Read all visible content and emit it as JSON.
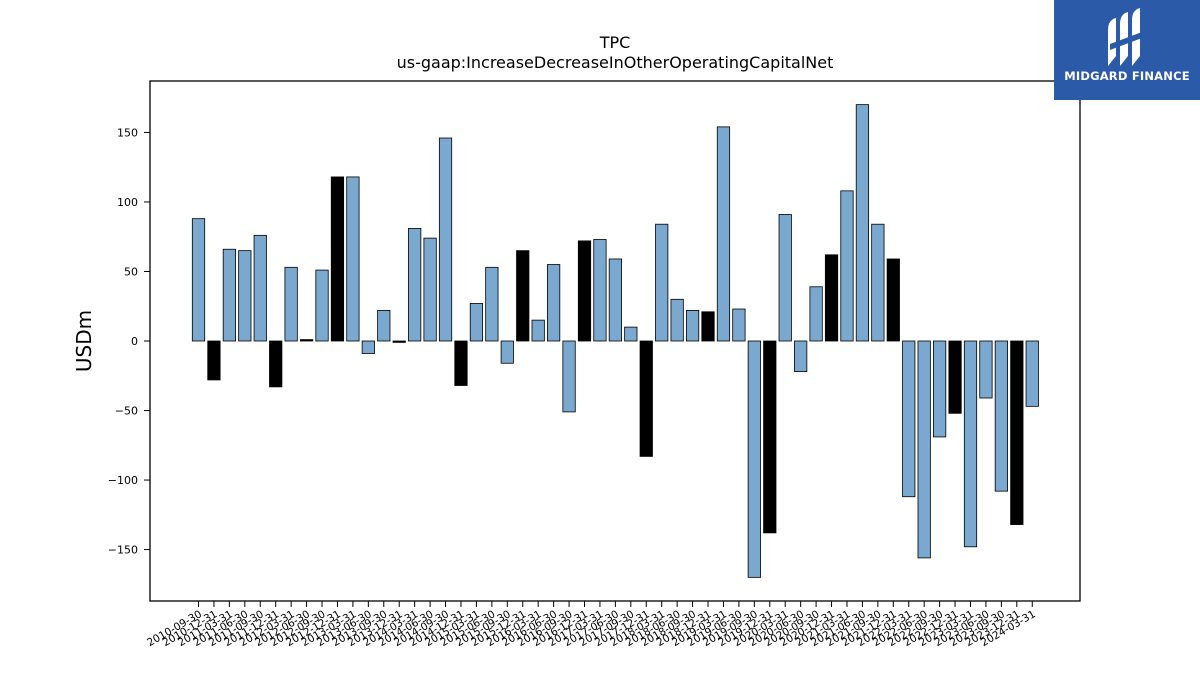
{
  "chart_data": {
    "type": "bar",
    "title": "TPC",
    "subtitle": "us-gaap:IncreaseDecreaseInOtherOperatingCapitalNet",
    "ylabel": "USDm",
    "xlabel": "",
    "ylim": [
      -187,
      187
    ],
    "yticks": [
      -150,
      -100,
      -50,
      0,
      50,
      100,
      150
    ],
    "grid": false,
    "colors": {
      "quarter": "#7aa8cf",
      "annual": "#000000",
      "edge": "#000000"
    },
    "tick_labels": [
      "2010-09-30",
      "2010-12-31",
      "2011-03-31",
      "2011-06-30",
      "2011-09-30",
      "2011-12-31",
      "2012-03-31",
      "2012-06-30",
      "2012-09-30",
      "2012-12-31",
      "2013-03-31",
      "2013-06-30",
      "2013-09-30",
      "2013-12-31",
      "2014-03-31",
      "2014-06-30",
      "2014-09-30",
      "2014-12-31",
      "2015-03-31",
      "2015-06-30",
      "2015-09-30",
      "2015-12-31",
      "2016-03-31",
      "2016-06-30",
      "2016-09-30",
      "2016-12-31",
      "2017-03-31",
      "2017-06-30",
      "2017-09-30",
      "2017-12-31",
      "2018-03-31",
      "2018-06-30",
      "2018-09-30",
      "2018-12-31",
      "2019-03-31",
      "2019-06-30",
      "2019-09-30",
      "2019-12-31",
      "2020-03-31",
      "2020-06-30",
      "2020-09-30",
      "2020-12-31",
      "2021-03-31",
      "2021-06-30",
      "2021-09-30",
      "2021-12-31",
      "2022-03-31",
      "2022-06-30",
      "2022-09-30",
      "2022-12-31",
      "2023-03-31",
      "2023-06-30",
      "2023-09-30",
      "2023-12-31",
      "2024-03-31"
    ],
    "values": [
      88,
      -28,
      66,
      65,
      76,
      -33,
      53,
      1,
      51,
      118,
      118,
      -9,
      22,
      -1,
      81,
      74,
      146,
      -32,
      27,
      53,
      -16,
      65,
      15,
      55,
      -51,
      72,
      73,
      59,
      10,
      -83,
      84,
      30,
      22,
      21,
      154,
      23,
      -170,
      -138,
      91,
      -22,
      39,
      62,
      108,
      170,
      84,
      59,
      -112,
      -156,
      -69,
      -52,
      -148,
      -41,
      -108,
      -132,
      -47
    ],
    "is_annual": [
      false,
      true,
      false,
      false,
      false,
      true,
      false,
      true,
      false,
      true,
      false,
      false,
      false,
      true,
      false,
      false,
      false,
      true,
      false,
      false,
      false,
      true,
      false,
      false,
      false,
      true,
      false,
      false,
      false,
      true,
      false,
      false,
      false,
      true,
      false,
      false,
      false,
      true,
      false,
      false,
      false,
      true,
      false,
      false,
      false,
      true,
      false,
      false,
      false,
      true,
      false,
      false,
      false,
      true,
      false
    ]
  },
  "logo": {
    "text": "MIDGARD FINANCE"
  }
}
